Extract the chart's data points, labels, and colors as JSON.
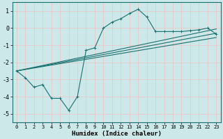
{
  "xlabel": "Humidex (Indice chaleur)",
  "background_color": "#cce8e8",
  "line_color": "#1a7070",
  "grid_color": "#e8c8c8",
  "xlim": [
    -0.5,
    23.5
  ],
  "ylim": [
    -5.5,
    1.5
  ],
  "yticks": [
    -5,
    -4,
    -3,
    -2,
    -1,
    0,
    1
  ],
  "xticks": [
    0,
    1,
    2,
    3,
    4,
    5,
    6,
    7,
    8,
    9,
    10,
    11,
    12,
    13,
    14,
    15,
    16,
    17,
    18,
    19,
    20,
    21,
    22,
    23
  ],
  "main_x": [
    0,
    1,
    2,
    3,
    4,
    5,
    6,
    7,
    8,
    9,
    10,
    11,
    12,
    13,
    14,
    15,
    16,
    17,
    18,
    19,
    20,
    21,
    22,
    23
  ],
  "main_y": [
    -2.5,
    -2.9,
    -3.45,
    -3.3,
    -4.1,
    -4.1,
    -4.8,
    -4.0,
    -1.3,
    -1.15,
    0.0,
    0.35,
    0.55,
    0.85,
    1.1,
    0.65,
    -0.2,
    -0.2,
    -0.2,
    -0.2,
    -0.15,
    -0.1,
    0.0,
    -0.35
  ],
  "line1_x": [
    0,
    23
  ],
  "line1_y": [
    -2.5,
    -0.05
  ],
  "line2_x": [
    0,
    23
  ],
  "line2_y": [
    -2.5,
    -0.3
  ],
  "line3_x": [
    0,
    23
  ],
  "line3_y": [
    -2.5,
    -0.55
  ]
}
